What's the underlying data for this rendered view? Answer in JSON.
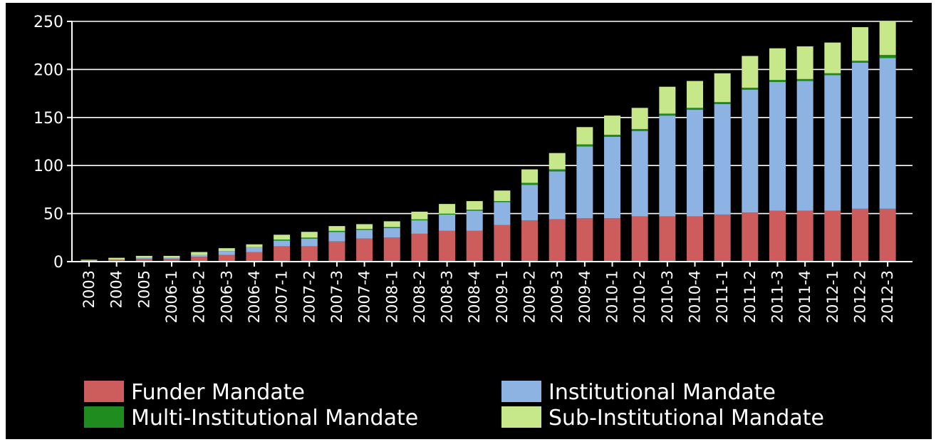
{
  "chart_data": {
    "type": "bar",
    "stacked": true,
    "categories": [
      "2003",
      "2004",
      "2005",
      "2006-1",
      "2006-2",
      "2006-3",
      "2006-4",
      "2007-1",
      "2007-2",
      "2007-3",
      "2007-4",
      "2008-1",
      "2008-2",
      "2008-3",
      "2008-4",
      "2009-1",
      "2009-2",
      "2009-3",
      "2009-4",
      "2010-1",
      "2010-2",
      "2010-3",
      "2010-4",
      "2011-1",
      "2011-2",
      "2011-3",
      "2011-4",
      "2012-1",
      "2012-2",
      "2012-3"
    ],
    "series": [
      {
        "name": "Funder Mandate",
        "color": "#cd5c5c",
        "values": [
          1,
          2,
          3,
          3,
          5,
          7,
          10,
          16,
          16,
          21,
          24,
          25,
          29,
          32,
          32,
          38,
          43,
          44,
          45,
          45,
          47,
          47,
          47,
          49,
          51,
          53,
          53,
          53,
          55,
          55
        ]
      },
      {
        "name": "Institutional Mandate",
        "color": "#8db3e2",
        "values": [
          0,
          0,
          1,
          1,
          2,
          4,
          5,
          6,
          8,
          10,
          9,
          10,
          14,
          17,
          21,
          24,
          37,
          50,
          75,
          85,
          89,
          105,
          111,
          115,
          128,
          134,
          135,
          141,
          152,
          157
        ]
      },
      {
        "name": "Multi-Institutional Mandate",
        "color": "#1e8c1e",
        "values": [
          0,
          0,
          0,
          0,
          0,
          0,
          0,
          1,
          1,
          1,
          1,
          1,
          1,
          1,
          1,
          1,
          2,
          2,
          2,
          2,
          2,
          2,
          2,
          2,
          2,
          2,
          2,
          2,
          2,
          3
        ]
      },
      {
        "name": "Sub-Institutional Mandate",
        "color": "#c6e88a",
        "values": [
          1,
          2,
          2,
          2,
          3,
          3,
          3,
          5,
          6,
          5,
          5,
          6,
          8,
          10,
          9,
          11,
          14,
          17,
          18,
          20,
          22,
          28,
          28,
          30,
          33,
          33,
          34,
          32,
          35,
          35
        ]
      }
    ],
    "ylim": [
      0,
      250
    ],
    "yticks": [
      "0",
      "50",
      "100",
      "150",
      "200",
      "250"
    ],
    "grid": true,
    "legend_position": "bottom",
    "xlabel": "",
    "ylabel": "",
    "title": "",
    "colors": {
      "background": "#000000",
      "axis": "#ffffff",
      "grid": "#ffffff",
      "text": "#ffffff"
    }
  }
}
